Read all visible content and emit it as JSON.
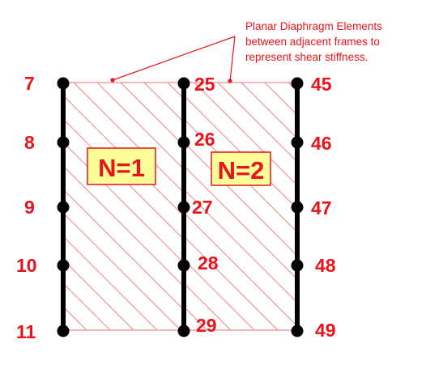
{
  "annotation": {
    "lines": [
      "Planar Diaphragm Elements",
      "between adjacent frames to",
      "represent shear stiffness."
    ]
  },
  "frames": [
    {
      "id": "left",
      "nodes": [
        "7",
        "8",
        "9",
        "10",
        "11"
      ]
    },
    {
      "id": "middle",
      "nodes": [
        "25",
        "26",
        "27",
        "28",
        "29"
      ]
    },
    {
      "id": "right",
      "nodes": [
        "45",
        "46",
        "47",
        "48",
        "49"
      ]
    }
  ],
  "diaphragms": [
    {
      "id": "n1",
      "label": "N=1"
    },
    {
      "id": "n2",
      "label": "N=2"
    }
  ],
  "colors": {
    "label": "#e8141b",
    "hatch": "#f08a8a",
    "frame": "#000000",
    "box_fill": "#ffff99",
    "box_stroke": "#e8141b"
  }
}
